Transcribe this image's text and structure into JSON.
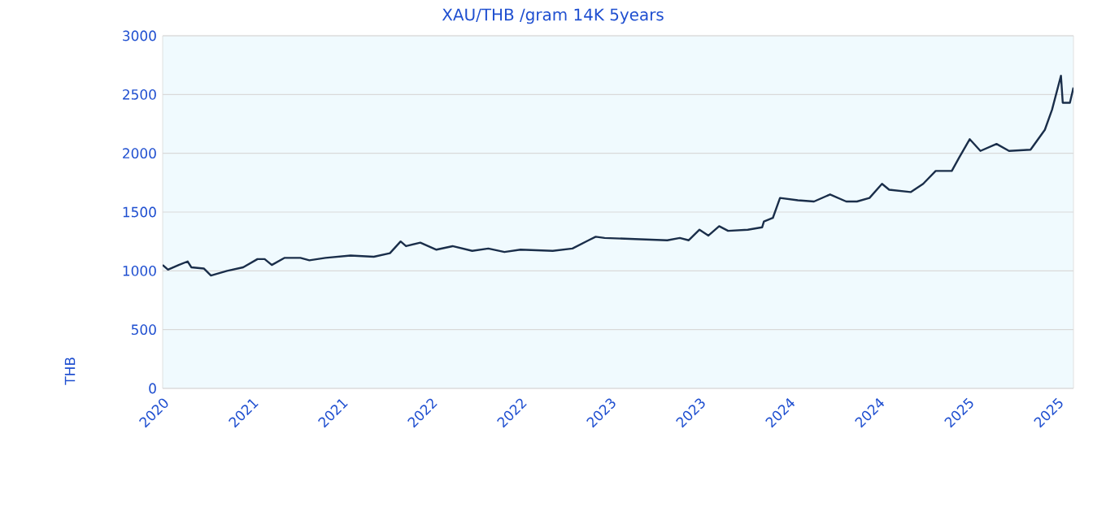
{
  "chart_data": {
    "type": "line",
    "title": "XAU/THB /gram 14K 5years",
    "ylabel": "THB",
    "x": [
      2020.5,
      2020.53,
      2020.59,
      2020.64,
      2020.66,
      2020.73,
      2020.77,
      2020.86,
      2020.95,
      2021.03,
      2021.07,
      2021.11,
      2021.18,
      2021.27,
      2021.32,
      2021.41,
      2021.55,
      2021.68,
      2021.77,
      2021.83,
      2021.86,
      2021.94,
      2022.03,
      2022.12,
      2022.23,
      2022.32,
      2022.41,
      2022.5,
      2022.68,
      2022.79,
      2022.88,
      2022.92,
      2022.97,
      2023.14,
      2023.32,
      2023.39,
      2023.44,
      2023.5,
      2023.55,
      2023.61,
      2023.66,
      2023.77,
      2023.85,
      2023.86,
      2023.91,
      2023.95,
      2024.05,
      2024.14,
      2024.23,
      2024.32,
      2024.38,
      2024.45,
      2024.52,
      2024.56,
      2024.68,
      2024.75,
      2024.82,
      2024.91,
      2024.95,
      2025.01,
      2025.07,
      2025.16,
      2025.23,
      2025.35,
      2025.43,
      2025.47,
      2025.52,
      2025.53,
      2025.57,
      2025.59
    ],
    "series": [
      {
        "color": "#1a2e4a",
        "values": [
          1050,
          1010,
          1050,
          1080,
          1030,
          1020,
          960,
          1000,
          1030,
          1100,
          1100,
          1050,
          1110,
          1110,
          1090,
          1110,
          1130,
          1120,
          1150,
          1250,
          1210,
          1240,
          1180,
          1210,
          1170,
          1190,
          1160,
          1180,
          1170,
          1190,
          1260,
          1290,
          1280,
          1270,
          1260,
          1280,
          1260,
          1350,
          1300,
          1380,
          1340,
          1350,
          1370,
          1420,
          1450,
          1620,
          1600,
          1590,
          1650,
          1590,
          1590,
          1620,
          1740,
          1690,
          1670,
          1740,
          1850,
          1850,
          1960,
          2120,
          2020,
          2080,
          2020,
          2030,
          2200,
          2370,
          2660,
          2430,
          2430,
          2560
        ]
      }
    ],
    "xlim": [
      2020.5,
      2025.59
    ],
    "xticks": [
      {
        "value": 2020.5,
        "label": "2020"
      },
      {
        "value": 2021.0,
        "label": "2021"
      },
      {
        "value": 2021.5,
        "label": "2021"
      },
      {
        "value": 2022.0,
        "label": "2022"
      },
      {
        "value": 2022.5,
        "label": "2022"
      },
      {
        "value": 2023.0,
        "label": "2023"
      },
      {
        "value": 2023.5,
        "label": "2023"
      },
      {
        "value": 2024.0,
        "label": "2024"
      },
      {
        "value": 2024.5,
        "label": "2024"
      },
      {
        "value": 2025.0,
        "label": "2025"
      },
      {
        "value": 2025.5,
        "label": "2025"
      }
    ],
    "ylim": [
      0,
      3000
    ],
    "yticks": [
      0,
      500,
      1000,
      1500,
      2000,
      2500,
      3000
    ],
    "grid": "y",
    "marker": "none",
    "line_style": "solid"
  }
}
